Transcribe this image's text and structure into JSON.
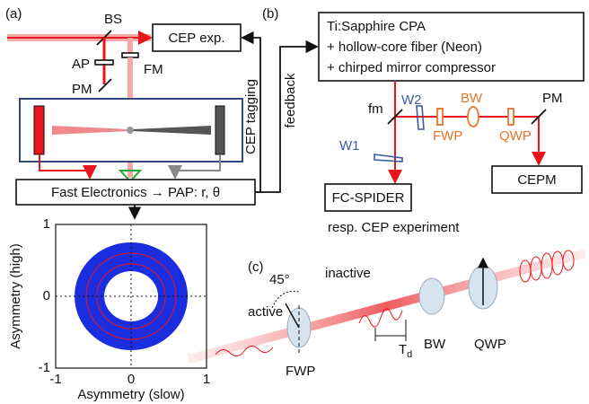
{
  "panels": {
    "a": "(a)",
    "b": "(b)",
    "c": "(c)"
  },
  "setup_a": {
    "bs": "BS",
    "ap": "AP",
    "pm": "PM",
    "fm": "FM",
    "cep_exp": "CEP exp.",
    "electronics": "Fast Electronics → PAP: r, θ"
  },
  "links": {
    "cep_tagging": "CEP tagging",
    "feedback": "feedback"
  },
  "setup_b": {
    "source": [
      "Ti:Sapphire CPA",
      "+ hollow-core fiber (Neon)",
      "+ chirped mirror compressor"
    ],
    "fm": "fm",
    "w1": "W1",
    "w2": "W2",
    "fwp": "FWP",
    "bw": "BW",
    "qwp": "QWP",
    "pm": "PM",
    "spider": "FC-SPIDER",
    "cepm": "CEPM",
    "note": "resp. CEP experiment"
  },
  "setup_c": {
    "angle": "45°",
    "inactive": "inactive",
    "active": "active",
    "fwp": "FWP",
    "delay": {
      "main": "T",
      "sub": "d"
    },
    "bw": "BW",
    "qwp": "QWP"
  },
  "chart_data": {
    "type": "scatter",
    "xlabel": "Asymmetry (slow)",
    "ylabel": "Asymmetry (high)",
    "xlim": [
      -1,
      1
    ],
    "ylim": [
      -1,
      1
    ],
    "xticks": [
      -1,
      0,
      1
    ],
    "yticks": [
      -1,
      0,
      1
    ],
    "grid": true
  }
}
